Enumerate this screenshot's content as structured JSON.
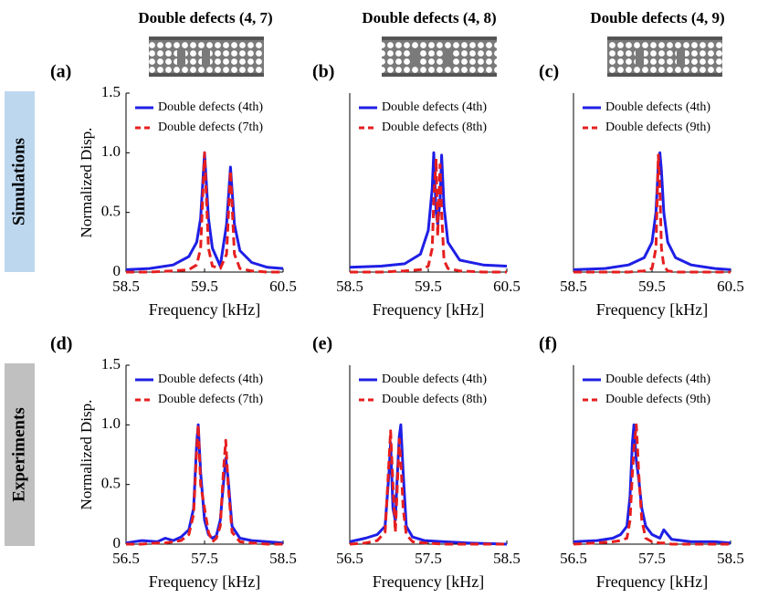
{
  "column_titles": [
    "Double defects (4, 7)",
    "Double defects (4, 8)",
    "Double defects (4, 9)"
  ],
  "row_labels": [
    "Simulations",
    "Experiments"
  ],
  "chart_data": [
    {
      "type": "line",
      "panel_label": "(a)",
      "xlabel": "Frequency [kHz]",
      "ylabel": "Normalized Disp.",
      "x": [
        58.5,
        58.8,
        59.1,
        59.3,
        59.4,
        59.45,
        59.5,
        59.55,
        59.6,
        59.7,
        59.78,
        59.83,
        59.88,
        59.95,
        60.1,
        60.3,
        60.5
      ],
      "series": [
        {
          "name": "Double defects (4th)",
          "color": "#1f1fe6",
          "linestyle": "solid",
          "values": [
            0.02,
            0.03,
            0.06,
            0.13,
            0.25,
            0.45,
            1.0,
            0.45,
            0.2,
            0.05,
            0.4,
            0.88,
            0.4,
            0.18,
            0.08,
            0.04,
            0.03
          ]
        },
        {
          "name": "Double defects (7th)",
          "color": "#e61e1e",
          "linestyle": "dashed",
          "values": [
            0,
            0,
            0.01,
            0.02,
            0.06,
            0.2,
            1.0,
            0.2,
            0.05,
            0.03,
            0.15,
            0.85,
            0.15,
            0.03,
            0.01,
            0,
            0
          ]
        }
      ],
      "xlim": [
        58.5,
        60.5
      ],
      "ylim": [
        0,
        1.5
      ],
      "xticks": [
        58.5,
        59.5,
        60.5
      ],
      "yticks": [
        0,
        0.5,
        {
          "value": 1,
          "label": "1.0"
        },
        1.5
      ],
      "legend": "upper left"
    },
    {
      "type": "line",
      "panel_label": "(b)",
      "xlabel": "Frequency [kHz]",
      "x": [
        58.5,
        58.9,
        59.2,
        59.4,
        59.5,
        59.55,
        59.57,
        59.6,
        59.62,
        59.65,
        59.67,
        59.7,
        59.75,
        59.9,
        60.2,
        60.5
      ],
      "series": [
        {
          "name": "Double defects (4th)",
          "color": "#1f1fe6",
          "linestyle": "solid",
          "values": [
            0.04,
            0.05,
            0.07,
            0.15,
            0.35,
            0.7,
            1.0,
            0.5,
            0.4,
            0.6,
            0.98,
            0.55,
            0.25,
            0.1,
            0.06,
            0.05
          ]
        },
        {
          "name": "Double defects (8th)",
          "color": "#e61e1e",
          "linestyle": "dashed",
          "values": [
            0,
            0,
            0.01,
            0.02,
            0.05,
            0.2,
            0.6,
            0.95,
            0.3,
            0.9,
            0.5,
            0.1,
            0.03,
            0.01,
            0,
            0
          ]
        }
      ],
      "xlim": [
        58.5,
        60.5
      ],
      "ylim": [
        0,
        1.5
      ],
      "xticks": [
        58.5,
        59.5,
        60.5
      ],
      "legend": "upper left"
    },
    {
      "type": "line",
      "panel_label": "(c)",
      "xlabel": "Frequency [kHz]",
      "x": [
        58.5,
        58.9,
        59.2,
        59.4,
        59.5,
        59.55,
        59.58,
        59.6,
        59.62,
        59.65,
        59.7,
        59.8,
        60.0,
        60.3,
        60.5
      ],
      "series": [
        {
          "name": "Double defects (4th)",
          "color": "#1f1fe6",
          "linestyle": "solid",
          "values": [
            0.02,
            0.03,
            0.06,
            0.12,
            0.25,
            0.5,
            0.9,
            1.0,
            0.85,
            0.5,
            0.25,
            0.12,
            0.06,
            0.03,
            0.02
          ]
        },
        {
          "name": "Double defects (9th)",
          "color": "#e61e1e",
          "linestyle": "dashed",
          "values": [
            0,
            0,
            0,
            0.01,
            0.03,
            0.2,
            0.98,
            0.7,
            0.2,
            0.05,
            0.01,
            0,
            0,
            0,
            0
          ]
        }
      ],
      "xlim": [
        58.5,
        60.5
      ],
      "ylim": [
        0,
        1.5
      ],
      "xticks": [
        58.5,
        59.5,
        60.5
      ],
      "legend": "upper left"
    },
    {
      "type": "line",
      "panel_label": "(d)",
      "xlabel": "Frequency [kHz]",
      "ylabel": "Normalized Disp.",
      "x": [
        56.5,
        56.7,
        56.9,
        57.0,
        57.1,
        57.2,
        57.3,
        57.36,
        57.4,
        57.42,
        57.45,
        57.5,
        57.55,
        57.6,
        57.65,
        57.7,
        57.74,
        57.77,
        57.8,
        57.85,
        57.95,
        58.1,
        58.3,
        58.5
      ],
      "series": [
        {
          "name": "Double defects (4th)",
          "color": "#1f1fe6",
          "linestyle": "solid",
          "values": [
            0.01,
            0.03,
            0.02,
            0.05,
            0.03,
            0.06,
            0.12,
            0.3,
            0.85,
            1.0,
            0.6,
            0.2,
            0.08,
            0.05,
            0.07,
            0.2,
            0.5,
            0.72,
            0.55,
            0.15,
            0.05,
            0.03,
            0.02,
            0.01
          ]
        },
        {
          "name": "Double defects (7th)",
          "color": "#e61e1e",
          "linestyle": "dashed",
          "values": [
            0,
            0,
            0.01,
            0.01,
            0.02,
            0.03,
            0.08,
            0.25,
            0.8,
            1.0,
            0.5,
            0.3,
            0.1,
            0.02,
            0.05,
            0.15,
            0.6,
            0.87,
            0.5,
            0.1,
            0.02,
            0.01,
            0,
            0
          ]
        }
      ],
      "xlim": [
        56.5,
        58.5
      ],
      "ylim": [
        0,
        1.5
      ],
      "xticks": [
        56.5,
        57.5,
        58.5
      ],
      "yticks": [
        0,
        0.5,
        {
          "value": 1,
          "label": "1.0"
        },
        1.5
      ],
      "legend": "upper left"
    },
    {
      "type": "line",
      "panel_label": "(e)",
      "xlabel": "Frequency [kHz]",
      "x": [
        56.5,
        56.7,
        56.85,
        56.95,
        57.0,
        57.02,
        57.05,
        57.08,
        57.1,
        57.13,
        57.15,
        57.18,
        57.22,
        57.3,
        57.45,
        57.7,
        58.0,
        58.5
      ],
      "series": [
        {
          "name": "Double defects (4th)",
          "color": "#1f1fe6",
          "linestyle": "solid",
          "values": [
            0.02,
            0.05,
            0.08,
            0.15,
            0.6,
            0.85,
            0.3,
            0.2,
            0.5,
            0.9,
            1.0,
            0.6,
            0.15,
            0.06,
            0.03,
            0.02,
            0.01,
            0
          ]
        },
        {
          "name": "Double defects (8th)",
          "color": "#e61e1e",
          "linestyle": "dashed",
          "values": [
            0,
            0.01,
            0.03,
            0.1,
            0.7,
            0.95,
            0.5,
            0.1,
            0.4,
            0.88,
            0.7,
            0.3,
            0.08,
            0.02,
            0.01,
            0,
            0,
            0
          ]
        }
      ],
      "xlim": [
        56.5,
        58.5
      ],
      "ylim": [
        0,
        1.5
      ],
      "xticks": [
        56.5,
        57.5,
        58.5
      ],
      "legend": "upper left"
    },
    {
      "type": "line",
      "panel_label": "(f)",
      "xlabel": "Frequency [kHz]",
      "x": [
        56.5,
        56.8,
        57.0,
        57.1,
        57.18,
        57.22,
        57.25,
        57.27,
        57.3,
        57.33,
        57.37,
        57.42,
        57.5,
        57.6,
        57.65,
        57.75,
        58.0,
        58.3,
        58.5
      ],
      "series": [
        {
          "name": "Double defects (4th)",
          "color": "#1f1fe6",
          "linestyle": "solid",
          "values": [
            0.02,
            0.03,
            0.05,
            0.08,
            0.15,
            0.4,
            0.85,
            1.0,
            0.7,
            0.55,
            0.3,
            0.15,
            0.08,
            0.05,
            0.12,
            0.04,
            0.02,
            0.02,
            0.01
          ]
        },
        {
          "name": "Double defects (9th)",
          "color": "#e61e1e",
          "linestyle": "dashed",
          "values": [
            0,
            0.01,
            0.02,
            0.03,
            0.05,
            0.2,
            0.6,
            0.8,
            1.0,
            0.6,
            0.2,
            0.05,
            0.02,
            0.01,
            0.01,
            0,
            0,
            0,
            0
          ]
        }
      ],
      "xlim": [
        56.5,
        58.5
      ],
      "ylim": [
        0,
        1.5
      ],
      "xticks": [
        56.5,
        57.5,
        58.5
      ],
      "legend": "upper left"
    }
  ]
}
